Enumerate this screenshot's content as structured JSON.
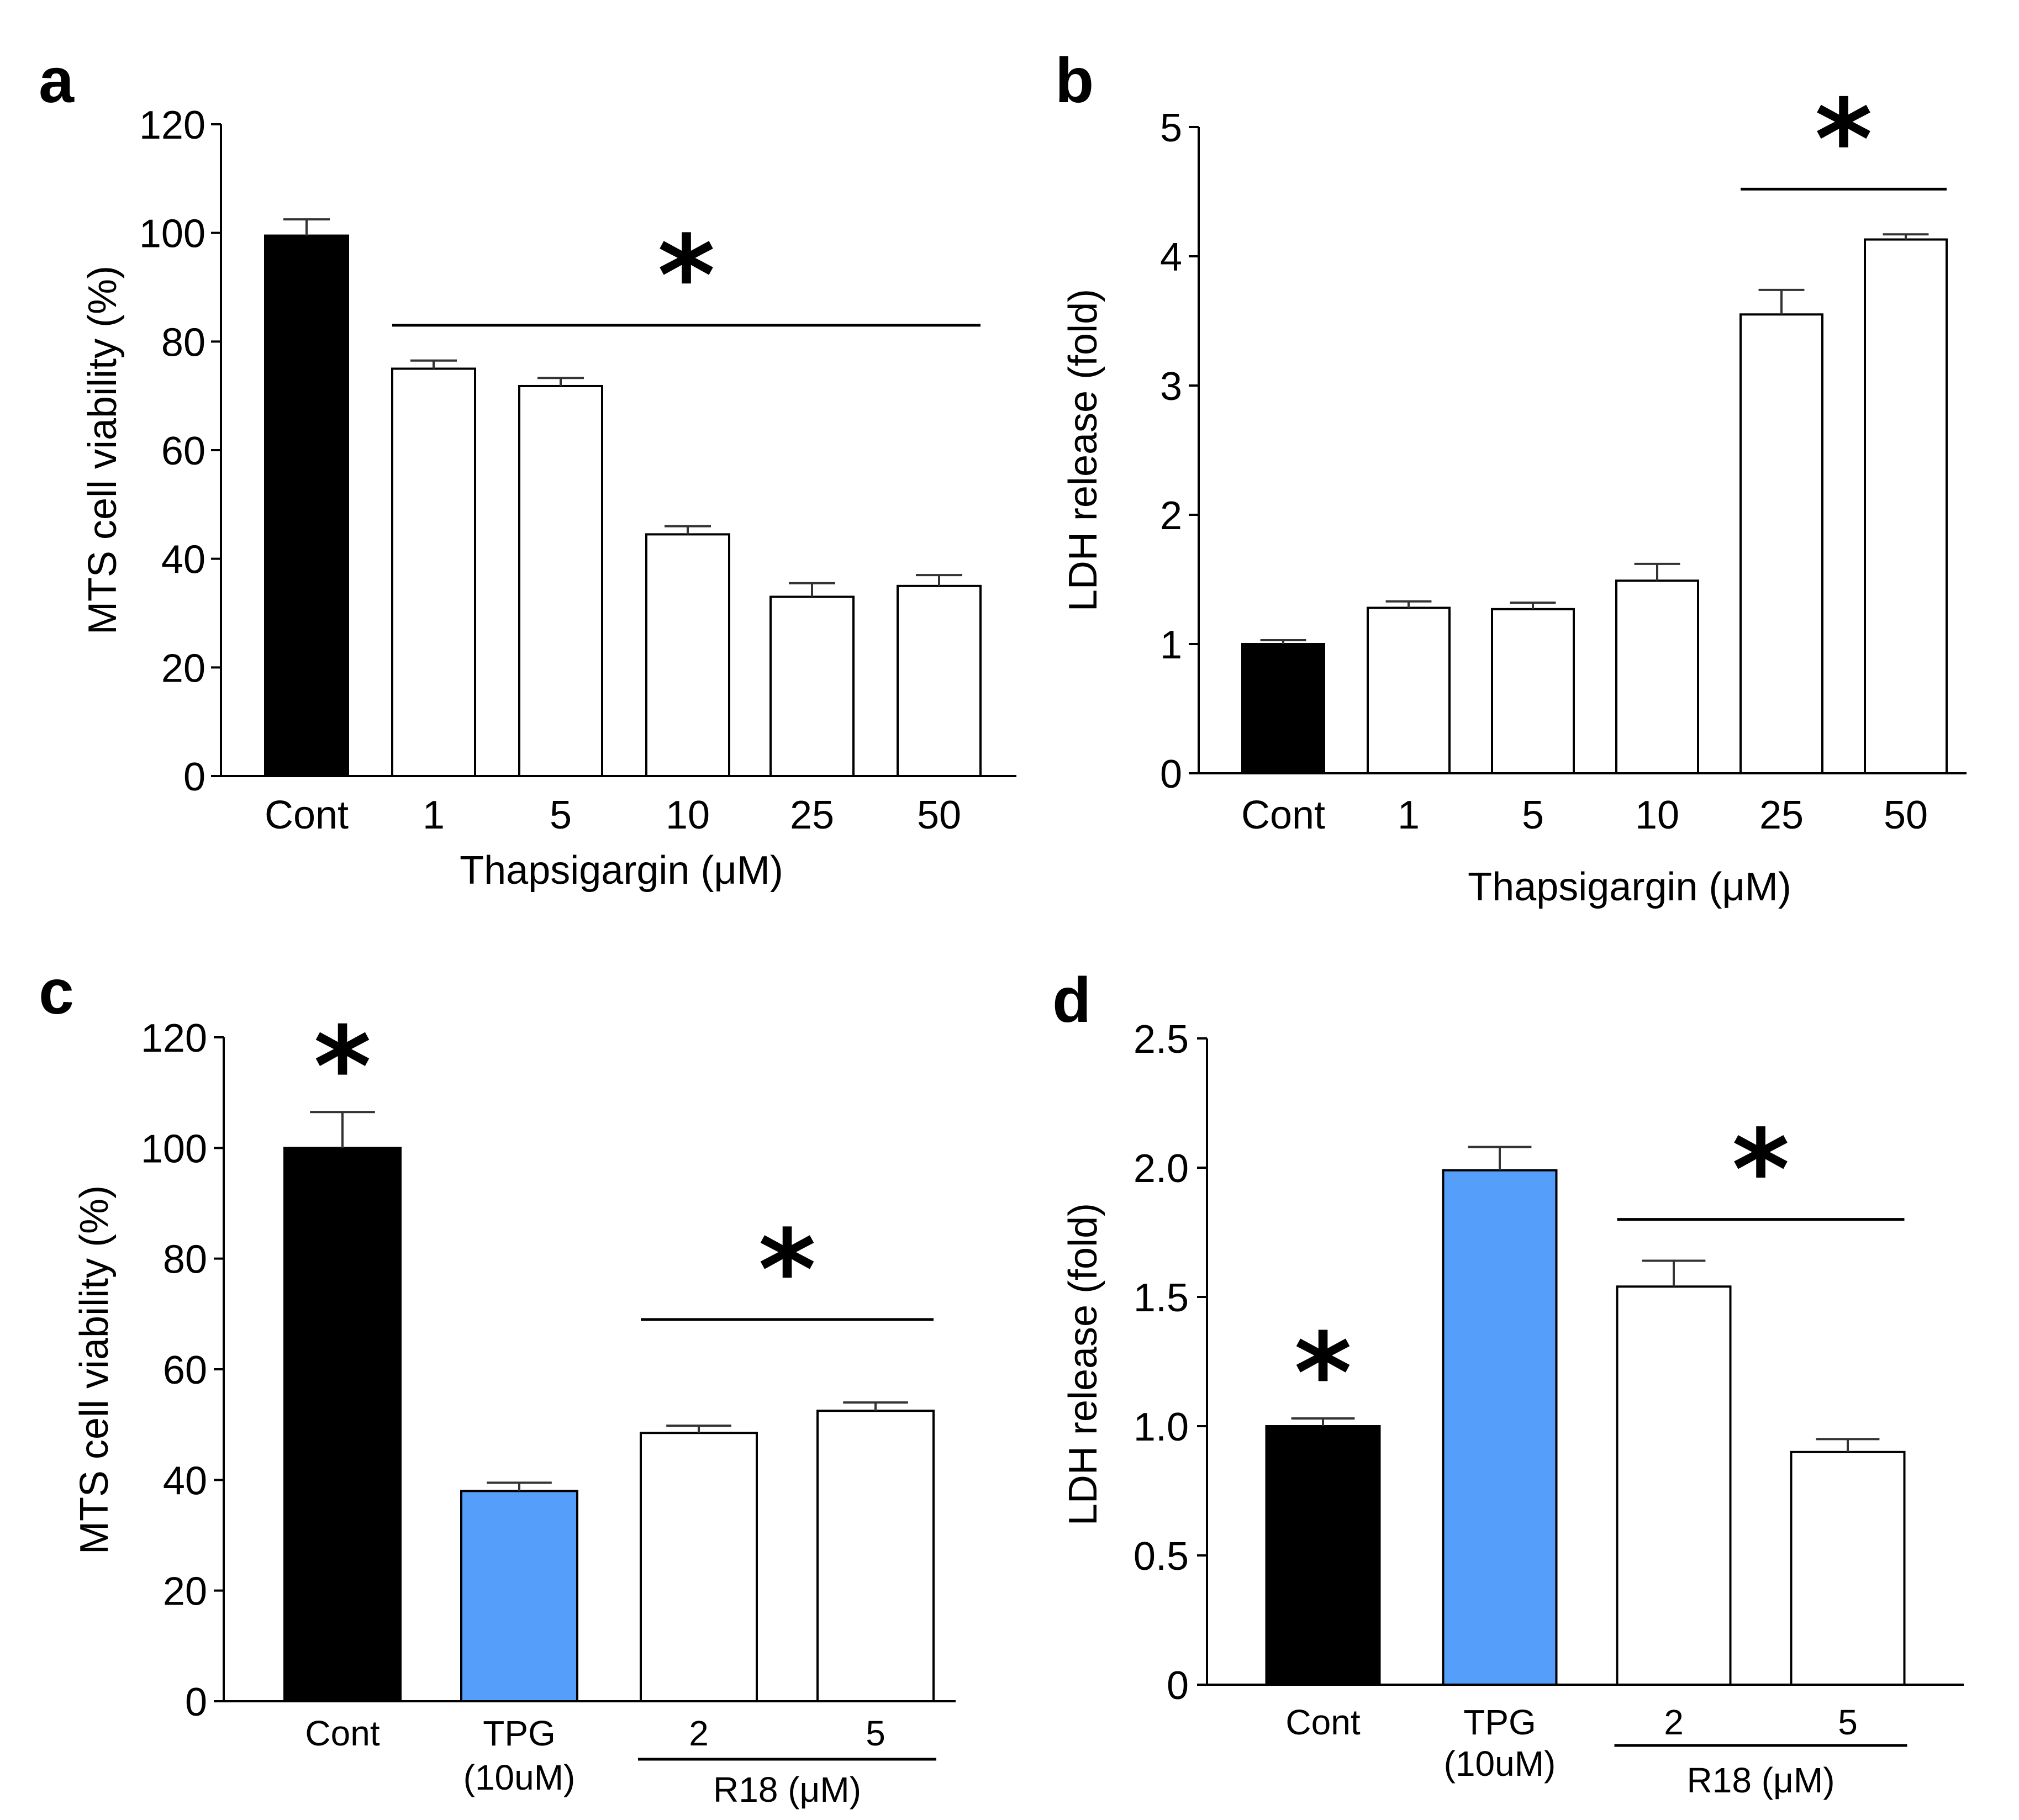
{
  "colors": {
    "cont": "#000000",
    "tpg": "#559ffb",
    "treatment": "#ffffff",
    "axis": "#000000",
    "error": "#333333"
  },
  "chart_data": [
    {
      "panel": "a",
      "type": "bar",
      "categories": [
        "Cont",
        "1",
        "5",
        "10",
        "25",
        "50"
      ],
      "values": [
        99.5,
        75,
        71.8,
        44.5,
        33,
        35
      ],
      "errors": [
        3,
        1.5,
        1.5,
        1.5,
        2.5,
        2
      ],
      "fills": [
        "cont",
        "treatment",
        "treatment",
        "treatment",
        "treatment",
        "treatment"
      ],
      "ylabel": "MTS cell viability (%)",
      "xlabel": "Thapsigargin (μM)",
      "ylim": [
        0,
        120
      ],
      "yticks": [
        "0",
        "20",
        "40",
        "60",
        "80",
        "100",
        "120"
      ],
      "significance": {
        "marker": "*",
        "bracket_from": 1,
        "bracket_to": 5,
        "y": 83
      }
    },
    {
      "panel": "b",
      "type": "bar",
      "categories": [
        "Cont",
        "1",
        "5",
        "10",
        "25",
        "50"
      ],
      "values": [
        1.0,
        1.28,
        1.27,
        1.49,
        3.55,
        4.13
      ],
      "errors": [
        0.03,
        0.05,
        0.05,
        0.13,
        0.19,
        0.04
      ],
      "fills": [
        "cont",
        "treatment",
        "treatment",
        "treatment",
        "treatment",
        "treatment"
      ],
      "ylabel": "LDH release (fold)",
      "xlabel": "Thapsigargin (μM)",
      "ylim": [
        0,
        5
      ],
      "yticks": [
        "0",
        "1",
        "2",
        "3",
        "4",
        "5"
      ],
      "significance": {
        "marker": "*",
        "bracket_from": 4,
        "bracket_to": 5,
        "y": 4.52
      }
    },
    {
      "panel": "c",
      "type": "bar",
      "categories": [
        "Cont",
        "TPG",
        "2",
        "5"
      ],
      "category_sublabels": [
        "",
        "(10uM)",
        "",
        ""
      ],
      "values": [
        100,
        38,
        48.5,
        52.5
      ],
      "errors": [
        6.5,
        1.5,
        1.3,
        1.5
      ],
      "fills": [
        "cont",
        "tpg",
        "treatment",
        "treatment"
      ],
      "ylabel": "MTS cell viability (%)",
      "group_label": "R18 (μM)",
      "group_from": 2,
      "group_to": 3,
      "ylim": [
        0,
        120
      ],
      "yticks": [
        "0",
        "20",
        "40",
        "60",
        "80",
        "100",
        "120"
      ],
      "significance": {
        "marker": "*",
        "bracket_from": 2,
        "bracket_to": 3,
        "y": 69
      },
      "bar_star": {
        "marker": "*",
        "bar": 0
      }
    },
    {
      "panel": "d",
      "type": "bar",
      "categories": [
        "Cont",
        "TPG",
        "2",
        "5"
      ],
      "category_sublabels": [
        "",
        "(10uM)",
        "",
        ""
      ],
      "values": [
        1.0,
        1.99,
        1.54,
        0.9
      ],
      "errors": [
        0.03,
        0.09,
        0.1,
        0.05
      ],
      "fills": [
        "cont",
        "tpg",
        "treatment",
        "treatment"
      ],
      "ylabel": "LDH release (fold)",
      "group_label": "R18 (μM)",
      "group_from": 2,
      "group_to": 3,
      "ylim": [
        0,
        2.5
      ],
      "yticks": [
        "0",
        "0.5",
        "1.0",
        "1.5",
        "2.0",
        "2.5"
      ],
      "significance": {
        "marker": "*",
        "bracket_from": 2,
        "bracket_to": 3,
        "y": 1.8
      },
      "bar_star": {
        "marker": "*",
        "bar": 0
      }
    }
  ]
}
